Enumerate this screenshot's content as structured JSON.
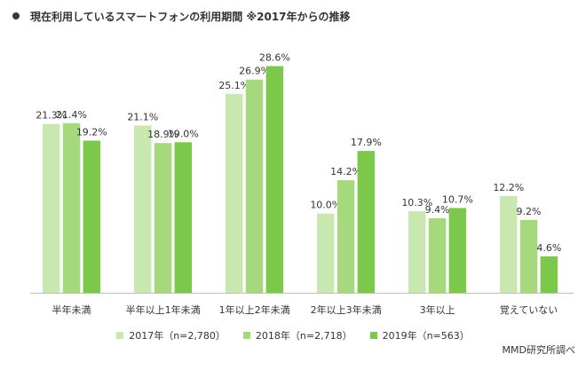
{
  "chart_data": {
    "type": "bar",
    "title": "現在利用しているスマートフォンの利用期間 ※2017年からの推移",
    "categories": [
      "半年未満",
      "半年以上1年未満",
      "1年以上2年未満",
      "2年以上3年未満",
      "3年以上",
      "覚えていない"
    ],
    "series": [
      {
        "name": "2017年（n=2,780）",
        "color": "#c9e8b0",
        "values": [
          21.3,
          21.1,
          25.1,
          10.0,
          10.3,
          12.2
        ],
        "labels": [
          "21.3%",
          "21.1%",
          "25.1%",
          "10.0%",
          "10.3%",
          "12.2%"
        ]
      },
      {
        "name": "2018年（n=2,718）",
        "color": "#a6d97e",
        "values": [
          21.4,
          18.9,
          26.9,
          14.2,
          9.4,
          9.2
        ],
        "labels": [
          "21.4%",
          "18.9%",
          "26.9%",
          "14.2%",
          "9.4%",
          "9.2%"
        ]
      },
      {
        "name": "2019年（n=563）",
        "color": "#7cc84a",
        "values": [
          19.2,
          19.0,
          28.6,
          17.9,
          10.7,
          4.6
        ],
        "labels": [
          "19.2%",
          "19.0%",
          "28.6%",
          "17.9%",
          "10.7%",
          "4.6%"
        ]
      }
    ],
    "ylim": [
      0,
      30
    ],
    "legend": "bottom",
    "grid": false,
    "source": "MMD研究所調べ"
  }
}
